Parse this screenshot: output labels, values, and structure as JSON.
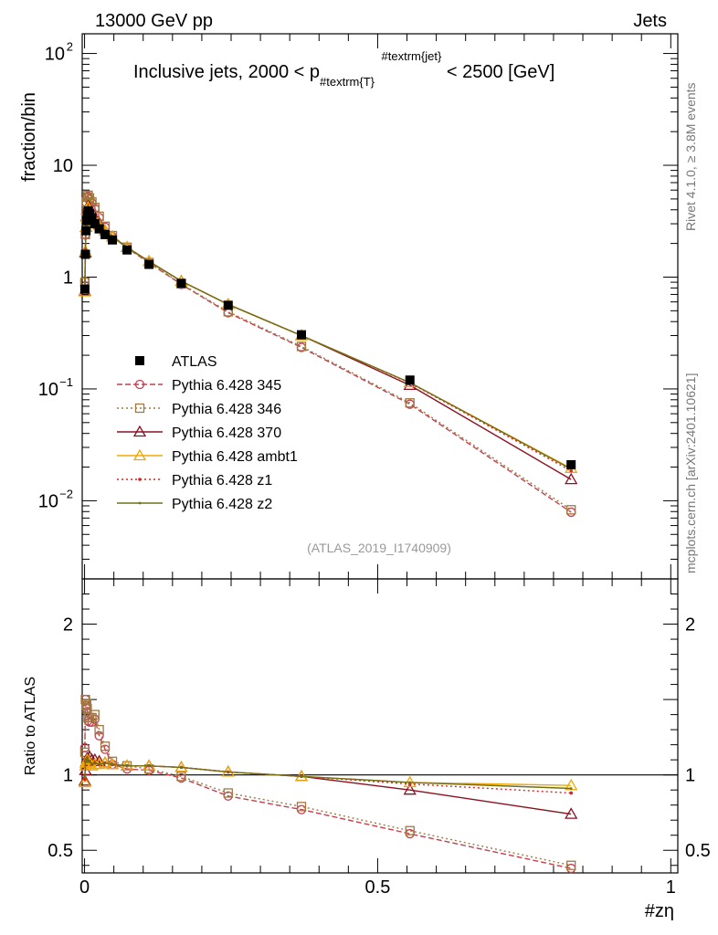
{
  "header": {
    "left": "13000 GeV pp",
    "right": "Jets"
  },
  "side": {
    "rivet": "Rivet 4.1.0, ≥ 3.8M events",
    "mcplots": "mcplots.cern.ch [arXiv:2401.10621]"
  },
  "chart_data": [
    {
      "type": "scatter",
      "panel": "main",
      "title_parts": [
        "Inclusive jets, 2000 < p",
        "#textrm{T}",
        "#textrm{jet}",
        " < 2500 [GeV]"
      ],
      "ylabel": "fraction/bin",
      "yscale": "log",
      "ylim": [
        0.002,
        150
      ],
      "xlim": [
        0,
        1
      ],
      "y_tick_labels": [
        {
          "base": "10",
          "exp": "2",
          "value": 100
        },
        {
          "base": "10",
          "exp": "",
          "value": 10
        },
        {
          "base": "1",
          "exp": "",
          "value": 1
        },
        {
          "base": "10",
          "exp": "−1",
          "value": 0.1
        },
        {
          "base": "10",
          "exp": "−2",
          "value": 0.01
        }
      ],
      "watermark": "(ATLAS_2019_I1740909)",
      "x": [
        0.0005,
        0.0015,
        0.0025,
        0.0035,
        0.0045,
        0.006,
        0.0085,
        0.0125,
        0.0175,
        0.025,
        0.035,
        0.0475,
        0.0725,
        0.11,
        0.165,
        0.245,
        0.37,
        0.555,
        0.83
      ],
      "series": [
        {
          "name": "ATLAS",
          "style": "data",
          "color": "#000000",
          "values": [
            0.78,
            1.6,
            2.6,
            3.2,
            3.6,
            3.9,
            3.7,
            3.4,
            3.0,
            2.7,
            2.4,
            2.15,
            1.75,
            1.3,
            0.88,
            0.56,
            0.305,
            0.12,
            0.021
          ]
        },
        {
          "name": "Pythia 6.428 345",
          "style": "circle",
          "color": "#c04050",
          "dash": "6,3",
          "values": [
            0.92,
            2.4,
            3.8,
            4.6,
            5.1,
            5.3,
            5.0,
            4.6,
            4.1,
            3.4,
            2.8,
            2.3,
            1.82,
            1.34,
            0.86,
            0.48,
            0.235,
            0.073,
            0.0079
          ]
        },
        {
          "name": "Pythia 6.428 346",
          "style": "square",
          "color": "#a07840",
          "dash": "2,3",
          "values": [
            0.9,
            2.4,
            3.8,
            4.7,
            5.2,
            5.4,
            5.1,
            4.7,
            4.2,
            3.5,
            2.85,
            2.35,
            1.85,
            1.35,
            0.87,
            0.49,
            0.24,
            0.075,
            0.0083
          ]
        },
        {
          "name": "Pythia 6.428 370",
          "style": "triangle",
          "color": "#8b1020",
          "dash": "",
          "values": [
            0.75,
            1.65,
            2.8,
            3.5,
            4.0,
            4.3,
            4.15,
            3.75,
            3.3,
            2.95,
            2.6,
            2.3,
            1.85,
            1.38,
            0.92,
            0.57,
            0.3,
            0.108,
            0.0155
          ]
        },
        {
          "name": "Pythia 6.428 ambt1",
          "style": "triangle",
          "color": "#f0a800",
          "dash": "",
          "values": [
            0.74,
            1.7,
            2.8,
            3.45,
            3.95,
            4.2,
            4.0,
            3.6,
            3.2,
            2.9,
            2.6,
            2.3,
            1.85,
            1.38,
            0.92,
            0.57,
            0.3,
            0.114,
            0.0195
          ]
        },
        {
          "name": "Pythia 6.428 z1",
          "style": "dot",
          "color": "#e02020",
          "dash": "2,3",
          "values": [
            0.76,
            1.75,
            2.85,
            3.5,
            4.0,
            4.25,
            4.05,
            3.65,
            3.25,
            2.9,
            2.6,
            2.3,
            1.85,
            1.38,
            0.92,
            0.57,
            0.3,
            0.113,
            0.0185
          ]
        },
        {
          "name": "Pythia 6.428 z2",
          "style": "smalldot",
          "color": "#707018",
          "dash": "",
          "values": [
            0.77,
            1.75,
            2.85,
            3.5,
            4.0,
            4.25,
            4.05,
            3.65,
            3.25,
            2.9,
            2.6,
            2.3,
            1.85,
            1.38,
            0.92,
            0.57,
            0.3,
            0.114,
            0.0192
          ]
        }
      ]
    },
    {
      "type": "line",
      "panel": "ratio",
      "ylabel": "Ratio to ATLAS",
      "xlabel": "#zη",
      "ylim": [
        0.35,
        2.3
      ],
      "xlim": [
        0,
        1
      ],
      "y_tick_labels": [
        {
          "label": "2",
          "value": 2
        },
        {
          "label": "1",
          "value": 1
        },
        {
          "label": "0.5",
          "value": 0.5
        }
      ],
      "x_tick_labels": [
        {
          "label": "0",
          "value": 0
        },
        {
          "label": "0.5",
          "value": 0.5
        },
        {
          "label": "1",
          "value": 1
        }
      ],
      "x": [
        0.0005,
        0.0015,
        0.0025,
        0.0035,
        0.0045,
        0.006,
        0.0085,
        0.0125,
        0.0175,
        0.025,
        0.035,
        0.0475,
        0.0725,
        0.11,
        0.165,
        0.245,
        0.37,
        0.555,
        0.83
      ],
      "series": [
        {
          "name": "Pythia 6.428 345",
          "style": "circle",
          "color": "#c04050",
          "dash": "6,3",
          "values": [
            1.18,
            1.5,
            1.46,
            1.44,
            1.42,
            1.36,
            1.35,
            1.35,
            1.37,
            1.26,
            1.17,
            1.07,
            1.04,
            1.03,
            0.98,
            0.86,
            0.77,
            0.61,
            0.38
          ]
        },
        {
          "name": "Pythia 6.428 346",
          "style": "square",
          "color": "#a07840",
          "dash": "2,3",
          "values": [
            1.15,
            1.5,
            1.46,
            1.47,
            1.44,
            1.38,
            1.38,
            1.38,
            1.4,
            1.3,
            1.19,
            1.09,
            1.06,
            1.04,
            0.99,
            0.88,
            0.79,
            0.63,
            0.4
          ]
        },
        {
          "name": "Pythia 6.428 370",
          "style": "triangle",
          "color": "#8b1020",
          "dash": "",
          "values": [
            0.96,
            1.03,
            1.08,
            1.09,
            1.11,
            1.1,
            1.12,
            1.1,
            1.1,
            1.09,
            1.08,
            1.07,
            1.06,
            1.06,
            1.05,
            1.02,
            0.99,
            0.9,
            0.74
          ]
        },
        {
          "name": "Pythia 6.428 ambt1",
          "style": "triangle",
          "color": "#f0a800",
          "dash": "",
          "values": [
            0.95,
            1.06,
            1.08,
            1.08,
            1.1,
            1.08,
            1.08,
            1.06,
            1.07,
            1.07,
            1.08,
            1.07,
            1.06,
            1.06,
            1.05,
            1.02,
            0.99,
            0.95,
            0.93
          ]
        },
        {
          "name": "Pythia 6.428 z1",
          "style": "dot",
          "color": "#e02020",
          "dash": "2,3",
          "values": [
            0.97,
            1.09,
            1.1,
            1.09,
            1.11,
            1.09,
            1.09,
            1.07,
            1.08,
            1.07,
            1.08,
            1.07,
            1.06,
            1.06,
            1.05,
            1.02,
            0.99,
            0.94,
            0.88
          ]
        },
        {
          "name": "Pythia 6.428 z2",
          "style": "smalldot",
          "color": "#707018",
          "dash": "",
          "values": [
            0.99,
            1.09,
            1.1,
            1.09,
            1.11,
            1.09,
            1.09,
            1.07,
            1.08,
            1.07,
            1.08,
            1.07,
            1.06,
            1.06,
            1.05,
            1.02,
            0.99,
            0.95,
            0.91
          ]
        }
      ]
    }
  ]
}
